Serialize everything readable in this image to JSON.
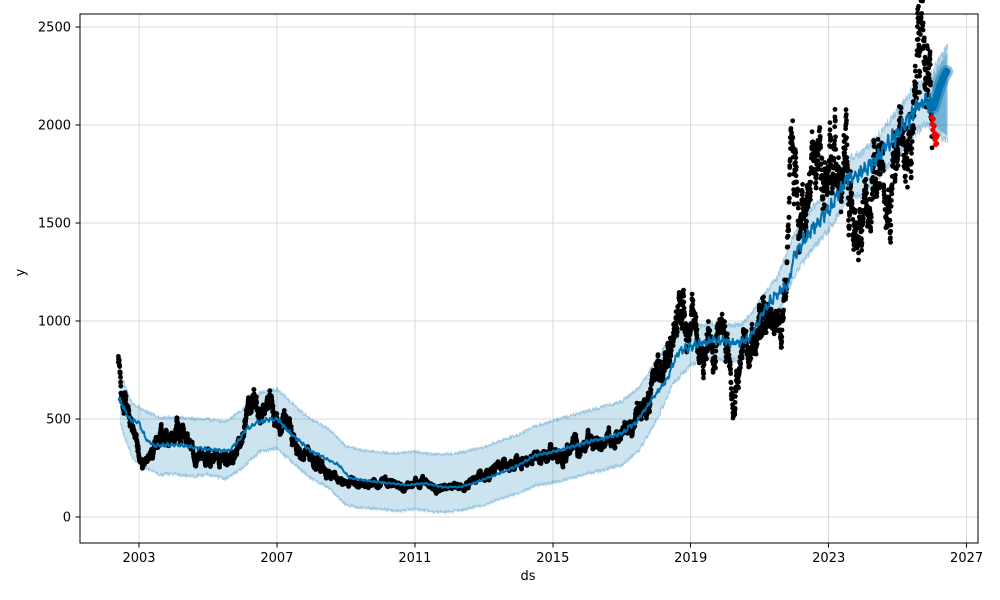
{
  "figure": {
    "xlabel": "ds",
    "ylabel": "y"
  },
  "colors": {
    "forecast_line": "#0072B2",
    "uncertainty_fill": "rgba(0,114,178,0.2)",
    "uncertainty_edge": "rgba(0,114,178,0.30)",
    "observed_points": "#000000",
    "flagged_points": "#f40000",
    "grid_line": "#d9d9d9",
    "spine": "#000000",
    "tick_text": "#000000"
  },
  "chart_data": {
    "type": "scatter",
    "xlabel": "ds",
    "ylabel": "y",
    "grid": true,
    "legend": "none",
    "xlim": [
      2001.29,
      2027.33
    ],
    "ylim": [
      -133,
      2566
    ],
    "xticks": [
      {
        "label": "2003",
        "value": 2003
      },
      {
        "label": "2007",
        "value": 2007
      },
      {
        "label": "2011",
        "value": 2011
      },
      {
        "label": "2015",
        "value": 2015
      },
      {
        "label": "2019",
        "value": 2019
      },
      {
        "label": "2023",
        "value": 2023
      },
      {
        "label": "2027",
        "value": 2027
      }
    ],
    "yticks": [
      {
        "label": "0",
        "value": 0
      },
      {
        "label": "500",
        "value": 500
      },
      {
        "label": "1000",
        "value": 1000
      },
      {
        "label": "1500",
        "value": 1500
      },
      {
        "label": "2000",
        "value": 2000
      },
      {
        "label": "2500",
        "value": 2500
      }
    ],
    "series": [
      {
        "name": "observed",
        "kind": "scatter-dense-daily",
        "color": "#000000",
        "anchors": [
          [
            2002.4,
            820
          ],
          [
            2002.5,
            700
          ],
          [
            2002.65,
            560
          ],
          [
            2002.8,
            430
          ],
          [
            2003.0,
            330
          ],
          [
            2003.15,
            290
          ],
          [
            2003.3,
            305
          ],
          [
            2003.5,
            360
          ],
          [
            2003.75,
            420
          ],
          [
            2003.9,
            365
          ],
          [
            2004.05,
            405
          ],
          [
            2004.2,
            445
          ],
          [
            2004.35,
            395
          ],
          [
            2004.5,
            350
          ],
          [
            2004.8,
            330
          ],
          [
            2005.1,
            290
          ],
          [
            2005.4,
            305
          ],
          [
            2005.7,
            335
          ],
          [
            2005.95,
            400
          ],
          [
            2006.1,
            480
          ],
          [
            2006.25,
            560
          ],
          [
            2006.4,
            610
          ],
          [
            2006.5,
            560
          ],
          [
            2006.65,
            540
          ],
          [
            2006.8,
            580
          ],
          [
            2006.95,
            520
          ],
          [
            2007.1,
            470
          ],
          [
            2007.25,
            490
          ],
          [
            2007.4,
            440
          ],
          [
            2007.55,
            350
          ],
          [
            2007.7,
            290
          ],
          [
            2007.85,
            330
          ],
          [
            2008.0,
            320
          ],
          [
            2008.2,
            280
          ],
          [
            2008.5,
            230
          ],
          [
            2008.8,
            190
          ],
          [
            2009.0,
            170
          ],
          [
            2009.2,
            185
          ],
          [
            2009.5,
            160
          ],
          [
            2009.8,
            175
          ],
          [
            2010.1,
            180
          ],
          [
            2010.45,
            165
          ],
          [
            2010.7,
            145
          ],
          [
            2011.0,
            170
          ],
          [
            2011.3,
            175
          ],
          [
            2011.6,
            145
          ],
          [
            2011.9,
            160
          ],
          [
            2012.2,
            155
          ],
          [
            2012.5,
            170
          ],
          [
            2012.8,
            195
          ],
          [
            2013.1,
            215
          ],
          [
            2013.4,
            245
          ],
          [
            2013.7,
            255
          ],
          [
            2014.0,
            285
          ],
          [
            2014.4,
            295
          ],
          [
            2014.8,
            305
          ],
          [
            2015.2,
            330
          ],
          [
            2015.6,
            355
          ],
          [
            2016.0,
            375
          ],
          [
            2016.4,
            395
          ],
          [
            2016.8,
            415
          ],
          [
            2017.1,
            440
          ],
          [
            2017.4,
            490
          ],
          [
            2017.65,
            560
          ],
          [
            2017.85,
            650
          ],
          [
            2018.0,
            700
          ],
          [
            2018.1,
            720
          ],
          [
            2018.25,
            820
          ],
          [
            2018.4,
            900
          ],
          [
            2018.55,
            980
          ],
          [
            2018.75,
            1040
          ],
          [
            2018.9,
            950
          ],
          [
            2019.05,
            980
          ],
          [
            2019.2,
            900
          ],
          [
            2019.35,
            850
          ],
          [
            2019.5,
            900
          ],
          [
            2019.65,
            820
          ],
          [
            2019.8,
            950
          ],
          [
            2019.95,
            1000
          ],
          [
            2020.08,
            850
          ],
          [
            2020.17,
            640
          ],
          [
            2020.25,
            560
          ],
          [
            2020.35,
            700
          ],
          [
            2020.5,
            820
          ],
          [
            2020.65,
            880
          ],
          [
            2020.8,
            940
          ],
          [
            2021.0,
            1010
          ],
          [
            2021.2,
            1080
          ],
          [
            2021.4,
            1020
          ],
          [
            2021.6,
            980
          ],
          [
            2021.75,
            1120
          ],
          [
            2021.8,
            1250
          ],
          [
            2021.88,
            1900
          ],
          [
            2021.95,
            2050
          ],
          [
            2022.0,
            1800
          ],
          [
            2022.05,
            1950
          ],
          [
            2022.1,
            1600
          ],
          [
            2022.2,
            1500
          ],
          [
            2022.3,
            1520
          ],
          [
            2022.45,
            1620
          ],
          [
            2022.6,
            1750
          ],
          [
            2022.75,
            1820
          ],
          [
            2022.9,
            1680
          ],
          [
            2023.05,
            1760
          ],
          [
            2023.2,
            1830
          ],
          [
            2023.35,
            1870
          ],
          [
            2023.5,
            1790
          ],
          [
            2023.65,
            1620
          ],
          [
            2023.8,
            1480
          ],
          [
            2023.95,
            1420
          ],
          [
            2024.1,
            1560
          ],
          [
            2024.25,
            1780
          ],
          [
            2024.4,
            1830
          ],
          [
            2024.55,
            1720
          ],
          [
            2024.7,
            1500
          ],
          [
            2024.8,
            1560
          ],
          [
            2024.95,
            1850
          ],
          [
            2025.08,
            1950
          ],
          [
            2025.18,
            1750
          ],
          [
            2025.3,
            1850
          ],
          [
            2025.42,
            2000
          ],
          [
            2025.55,
            2150
          ],
          [
            2025.68,
            2380
          ],
          [
            2025.78,
            2300
          ],
          [
            2025.88,
            2150
          ],
          [
            2026.0,
            2080
          ]
        ]
      },
      {
        "name": "yhat",
        "kind": "line",
        "color": "#0072B2",
        "anchors": [
          [
            2002.4,
            610
          ],
          [
            2002.6,
            540
          ],
          [
            2002.75,
            495
          ],
          [
            2003.0,
            478
          ],
          [
            2003.2,
            400
          ],
          [
            2003.45,
            360
          ],
          [
            2003.7,
            368
          ],
          [
            2004.2,
            366
          ],
          [
            2004.7,
            352
          ],
          [
            2005.15,
            342
          ],
          [
            2005.6,
            335
          ],
          [
            2005.9,
            392
          ],
          [
            2006.1,
            444
          ],
          [
            2006.4,
            480
          ],
          [
            2006.7,
            495
          ],
          [
            2007.0,
            500
          ],
          [
            2007.45,
            418
          ],
          [
            2007.95,
            342
          ],
          [
            2008.4,
            300
          ],
          [
            2008.8,
            264
          ],
          [
            2009.1,
            200
          ],
          [
            2009.4,
            190
          ],
          [
            2009.9,
            178
          ],
          [
            2010.3,
            172
          ],
          [
            2010.8,
            162
          ],
          [
            2011.3,
            172
          ],
          [
            2011.8,
            152
          ],
          [
            2012.3,
            153
          ],
          [
            2012.7,
            172
          ],
          [
            2013.2,
            205
          ],
          [
            2013.7,
            240
          ],
          [
            2014.0,
            264
          ],
          [
            2014.5,
            315
          ],
          [
            2015.0,
            332
          ],
          [
            2015.5,
            356
          ],
          [
            2016.0,
            382
          ],
          [
            2016.5,
            402
          ],
          [
            2017.0,
            428
          ],
          [
            2017.4,
            480
          ],
          [
            2017.8,
            580
          ],
          [
            2018.1,
            650
          ],
          [
            2018.3,
            700
          ],
          [
            2018.65,
            842
          ],
          [
            2019.0,
            868
          ],
          [
            2019.35,
            892
          ],
          [
            2019.75,
            902
          ],
          [
            2020.1,
            888
          ],
          [
            2020.4,
            888
          ],
          [
            2020.7,
            912
          ],
          [
            2021.0,
            1005
          ],
          [
            2021.3,
            1096
          ],
          [
            2021.55,
            1142
          ],
          [
            2021.85,
            1194
          ],
          [
            2022.0,
            1335
          ],
          [
            2022.5,
            1462
          ],
          [
            2023.0,
            1566
          ],
          [
            2023.5,
            1718
          ],
          [
            2024.0,
            1756
          ],
          [
            2024.5,
            1856
          ],
          [
            2025.0,
            1958
          ],
          [
            2025.5,
            2075
          ],
          [
            2025.8,
            2128
          ],
          [
            2025.95,
            2100
          ],
          [
            2026.03,
            2095
          ]
        ]
      },
      {
        "name": "uncertainty_interval",
        "kind": "band",
        "color": "rgba(0,114,178,0.2)",
        "anchors": [
          [
            2002.45,
            480,
            740
          ],
          [
            2002.8,
            300,
            580
          ],
          [
            2003.2,
            250,
            540
          ],
          [
            2003.6,
            215,
            505
          ],
          [
            2004.0,
            220,
            510
          ],
          [
            2004.5,
            205,
            500
          ],
          [
            2005.0,
            215,
            500
          ],
          [
            2005.5,
            195,
            485
          ],
          [
            2006.0,
            250,
            545
          ],
          [
            2006.5,
            335,
            635
          ],
          [
            2007.0,
            350,
            650
          ],
          [
            2007.5,
            270,
            570
          ],
          [
            2008.0,
            195,
            495
          ],
          [
            2008.5,
            150,
            450
          ],
          [
            2009.0,
            60,
            360
          ],
          [
            2009.5,
            45,
            340
          ],
          [
            2010.0,
            40,
            330
          ],
          [
            2010.5,
            30,
            325
          ],
          [
            2011.0,
            40,
            335
          ],
          [
            2011.5,
            25,
            320
          ],
          [
            2012.0,
            25,
            320
          ],
          [
            2012.5,
            40,
            335
          ],
          [
            2013.0,
            60,
            355
          ],
          [
            2013.5,
            95,
            390
          ],
          [
            2014.0,
            120,
            420
          ],
          [
            2014.5,
            160,
            465
          ],
          [
            2015.0,
            175,
            490
          ],
          [
            2015.5,
            195,
            515
          ],
          [
            2016.0,
            220,
            540
          ],
          [
            2016.5,
            240,
            565
          ],
          [
            2017.0,
            265,
            590
          ],
          [
            2017.5,
            340,
            660
          ],
          [
            2018.0,
            490,
            800
          ],
          [
            2018.5,
            680,
            940
          ],
          [
            2019.0,
            775,
            955
          ],
          [
            2019.5,
            810,
            985
          ],
          [
            2020.0,
            800,
            975
          ],
          [
            2020.5,
            805,
            985
          ],
          [
            2021.0,
            910,
            1100
          ],
          [
            2021.5,
            1030,
            1220
          ],
          [
            2022.0,
            1230,
            1440
          ],
          [
            2022.5,
            1360,
            1570
          ],
          [
            2023.0,
            1460,
            1670
          ],
          [
            2023.5,
            1610,
            1820
          ],
          [
            2024.0,
            1650,
            1860
          ],
          [
            2024.5,
            1750,
            1960
          ],
          [
            2025.0,
            1850,
            2070
          ],
          [
            2025.5,
            1965,
            2190
          ],
          [
            2025.9,
            2000,
            2240
          ],
          [
            2026.02,
            1990,
            2260
          ],
          [
            2026.2,
            1950,
            2330
          ],
          [
            2026.45,
            1920,
            2400
          ]
        ]
      },
      {
        "name": "forecast_segment",
        "kind": "thick-line",
        "color": "#0072B2",
        "points": [
          [
            2026.03,
            2090
          ],
          [
            2026.12,
            2140
          ],
          [
            2026.22,
            2195
          ],
          [
            2026.32,
            2240
          ],
          [
            2026.42,
            2272
          ]
        ]
      },
      {
        "name": "flagged_points",
        "kind": "scatter",
        "color": "#f40000",
        "points": [
          [
            2025.98,
            2040
          ],
          [
            2026.0,
            2005
          ],
          [
            2026.02,
            1975
          ],
          [
            2026.03,
            2030
          ],
          [
            2026.05,
            1950
          ],
          [
            2026.06,
            1995
          ],
          [
            2026.08,
            1925
          ],
          [
            2026.09,
            1955
          ],
          [
            2026.1,
            1900
          ],
          [
            2026.12,
            1935
          ],
          [
            2026.13,
            1905
          ],
          [
            2026.15,
            1945
          ]
        ]
      }
    ]
  }
}
